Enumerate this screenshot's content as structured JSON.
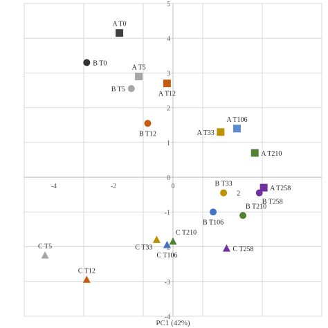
{
  "chart_data": {
    "type": "scatter",
    "xlabel": "PC1 (42%)",
    "ylabel": "",
    "xlim": [
      -5,
      5
    ],
    "ylim": [
      -4,
      5
    ],
    "x_ticks": [
      -4,
      -2,
      0
    ],
    "x_tick_labels": [
      "-4",
      "-2",
      "0"
    ],
    "y_ticks": [
      -4,
      -3,
      -2,
      -1,
      0,
      1,
      2,
      3,
      4,
      5
    ],
    "y_tick_labels": [
      "-4",
      "-3",
      "-2",
      "-1",
      "0",
      "1",
      "2",
      "3",
      "4",
      "5"
    ],
    "grid": true,
    "points": [
      {
        "label": "A T0",
        "x": -1.8,
        "y": 4.15,
        "shape": "square",
        "color": "#404040",
        "label_pos": "above"
      },
      {
        "label": "B T0",
        "x": -2.9,
        "y": 3.3,
        "shape": "circle",
        "color": "#333333",
        "label_pos": "right"
      },
      {
        "label": "A T5",
        "x": -1.15,
        "y": 2.9,
        "shape": "square",
        "color": "#a6a6a6",
        "label_pos": "above"
      },
      {
        "label": "B T5",
        "x": -1.4,
        "y": 2.55,
        "shape": "circle",
        "color": "#a6a6a6",
        "label_pos": "left"
      },
      {
        "label": "A T12",
        "x": -0.2,
        "y": 2.7,
        "shape": "square",
        "color": "#c55a11",
        "label_pos": "below"
      },
      {
        "label": "B T12",
        "x": -0.85,
        "y": 1.55,
        "shape": "circle",
        "color": "#c55a11",
        "label_pos": "below"
      },
      {
        "label": "A T106",
        "x": 2.15,
        "y": 1.4,
        "shape": "square",
        "color": "#5b8bd0",
        "label_pos": "above"
      },
      {
        "label": "A T33",
        "x": 1.6,
        "y": 1.3,
        "shape": "square",
        "color": "#bf9000",
        "label_pos": "left"
      },
      {
        "label": "A T210",
        "x": 2.75,
        "y": 0.7,
        "shape": "square",
        "color": "#548235",
        "label_pos": "right"
      },
      {
        "label": "B T33",
        "x": 1.7,
        "y": -0.45,
        "shape": "circle",
        "color": "#bf9000",
        "label_pos": "above"
      },
      {
        "label": "2",
        "x": 2.2,
        "y": -0.45,
        "shape": "none",
        "color": "#262626",
        "label_pos": "center"
      },
      {
        "label": "A T258",
        "x": 3.05,
        "y": -0.3,
        "shape": "square",
        "color": "#7030a0",
        "label_pos": "right"
      },
      {
        "label": "B T258",
        "x": 2.9,
        "y": -0.45,
        "shape": "circle",
        "color": "#7030a0",
        "label_pos": "below-right"
      },
      {
        "label": "B T210",
        "x": 2.35,
        "y": -1.1,
        "shape": "circle",
        "color": "#548235",
        "label_pos": "above-right"
      },
      {
        "label": "B T106",
        "x": 1.35,
        "y": -1.0,
        "shape": "circle",
        "color": "#4472c4",
        "label_pos": "below"
      },
      {
        "label": "C T210",
        "x": 0.0,
        "y": -1.85,
        "shape": "triangle",
        "color": "#548235",
        "label_pos": "above-right"
      },
      {
        "label": "C T33",
        "x": -0.55,
        "y": -1.8,
        "shape": "triangle",
        "color": "#bf9000",
        "label_pos": "below-left"
      },
      {
        "label": "C T106",
        "x": -0.2,
        "y": -1.95,
        "shape": "triangle",
        "color": "#4472c4",
        "label_pos": "below"
      },
      {
        "label": "C T258",
        "x": 1.8,
        "y": -2.05,
        "shape": "triangle",
        "color": "#7030a0",
        "label_pos": "right"
      },
      {
        "label": "C T5",
        "x": -4.3,
        "y": -2.25,
        "shape": "triangle",
        "color": "#a6a6a6",
        "label_pos": "above"
      },
      {
        "label": "C T12",
        "x": -2.9,
        "y": -2.95,
        "shape": "triangle",
        "color": "#c55a11",
        "label_pos": "above"
      }
    ]
  }
}
